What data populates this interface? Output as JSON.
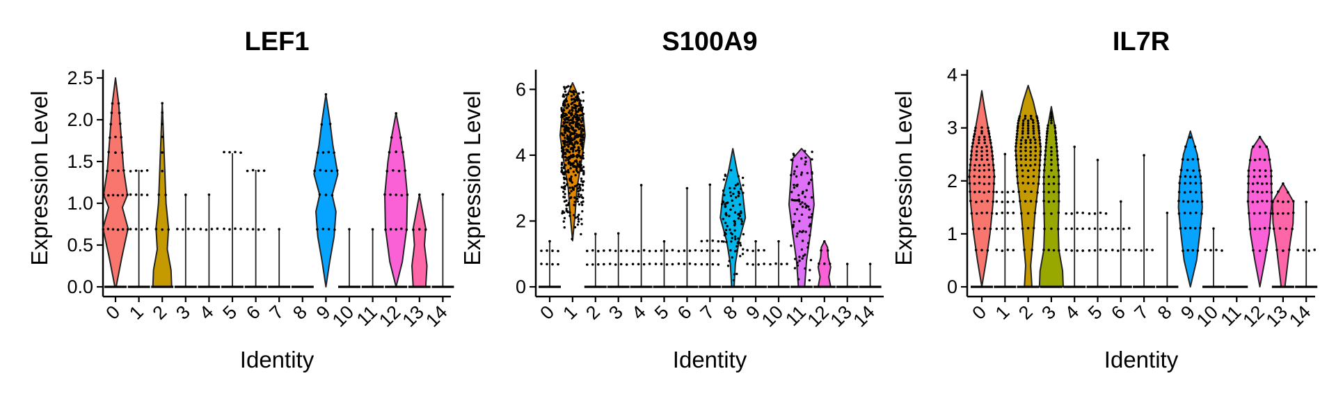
{
  "chart_data": [
    {
      "type": "violin",
      "title": "LEF1",
      "xlabel": "Identity",
      "ylabel": "Expression Level",
      "categories": [
        "0",
        "1",
        "2",
        "3",
        "4",
        "5",
        "6",
        "7",
        "8",
        "9",
        "10",
        "11",
        "12",
        "13",
        "14"
      ],
      "category_colors": [
        "#F8766D",
        "#E38900",
        "#C49A00",
        "#99A800",
        "#53B400",
        "#00BC56",
        "#00C094",
        "#00BFC4",
        "#00B6EB",
        "#06A4FF",
        "#A58AFF",
        "#DF70F8",
        "#FB61D7",
        "#FF66A8",
        "#FF6C91"
      ],
      "ylim": [
        0,
        2.6
      ],
      "yticks": [
        0.0,
        0.5,
        1.0,
        1.5,
        2.0,
        2.5
      ],
      "ytick_labels": [
        "0.0",
        "0.5",
        "1.0",
        "1.5",
        "2.0",
        "2.5"
      ],
      "groups": [
        {
          "max": 2.5,
          "levels": [
            0,
            0.69,
            1.1,
            1.39,
            1.61,
            1.79,
            1.95,
            2.08,
            2.2
          ],
          "profile": [
            [
              0,
              0.05
            ],
            [
              0.35,
              0.5
            ],
            [
              0.7,
              1.0
            ],
            [
              0.95,
              0.55
            ],
            [
              1.1,
              0.95
            ],
            [
              1.4,
              0.65
            ],
            [
              1.8,
              0.45
            ],
            [
              2.2,
              0.25
            ],
            [
              2.5,
              0
            ]
          ]
        },
        {
          "max": 1.4,
          "levels": [
            0,
            0.69,
            1.1,
            1.39
          ],
          "profile": null
        },
        {
          "max": 2.2,
          "levels": [
            0,
            0.69,
            1.1,
            1.39,
            1.61,
            1.79,
            1.95,
            2.08,
            2.2
          ],
          "profile": [
            [
              0,
              0.75
            ],
            [
              0.2,
              0.7
            ],
            [
              0.45,
              0.4
            ],
            [
              0.7,
              0.5
            ],
            [
              1.0,
              0.3
            ],
            [
              1.4,
              0.2
            ],
            [
              1.8,
              0.1
            ],
            [
              2.2,
              0
            ]
          ]
        },
        {
          "max": 1.1,
          "levels": [
            0,
            0.69,
            1.1
          ],
          "profile": null
        },
        {
          "max": 1.1,
          "levels": [
            0,
            0.69,
            1.1
          ],
          "profile": null
        },
        {
          "max": 1.6,
          "levels": [
            0,
            0.69,
            1.61
          ],
          "profile": null
        },
        {
          "max": 1.4,
          "levels": [
            0,
            0.69,
            1.39
          ],
          "profile": null
        },
        {
          "max": 0.69,
          "levels": [
            0,
            0.69
          ],
          "profile": null
        },
        {
          "max": 0,
          "levels": [
            0
          ],
          "profile": null
        },
        {
          "max": 2.3,
          "levels": [
            0.69,
            1.1,
            1.39,
            1.61,
            1.95,
            2.3
          ],
          "profile": [
            [
              0,
              0
            ],
            [
              0.3,
              0.3
            ],
            [
              0.6,
              0.65
            ],
            [
              0.9,
              0.8
            ],
            [
              1.1,
              0.5
            ],
            [
              1.35,
              0.95
            ],
            [
              1.7,
              0.55
            ],
            [
              2.0,
              0.3
            ],
            [
              2.3,
              0
            ]
          ]
        },
        {
          "max": 0.69,
          "levels": [
            0,
            0.69
          ],
          "profile": null
        },
        {
          "max": 0.69,
          "levels": [
            0,
            0.69
          ],
          "profile": null
        },
        {
          "max": 2.08,
          "levels": [
            0,
            0.69,
            1.1,
            1.39,
            1.61,
            1.79,
            2.08
          ],
          "profile": [
            [
              0,
              0
            ],
            [
              0.3,
              0.5
            ],
            [
              0.7,
              0.85
            ],
            [
              1.1,
              0.9
            ],
            [
              1.5,
              0.65
            ],
            [
              1.8,
              0.35
            ],
            [
              2.08,
              0
            ]
          ]
        },
        {
          "max": 1.1,
          "levels": [
            0,
            0.69,
            1.1
          ],
          "profile": [
            [
              0,
              0.5
            ],
            [
              0.25,
              0.6
            ],
            [
              0.5,
              0.4
            ],
            [
              0.7,
              0.5
            ],
            [
              0.9,
              0.25
            ],
            [
              1.1,
              0
            ]
          ]
        },
        {
          "max": 1.1,
          "levels": [
            0,
            1.1
          ],
          "profile": null
        }
      ]
    },
    {
      "type": "violin",
      "title": "S100A9",
      "xlabel": "Identity",
      "ylabel": "Expression Level",
      "categories": [
        "0",
        "1",
        "2",
        "3",
        "4",
        "5",
        "6",
        "7",
        "8",
        "9",
        "10",
        "11",
        "12",
        "13",
        "14"
      ],
      "category_colors": [
        "#F8766D",
        "#E38900",
        "#C49A00",
        "#99A800",
        "#53B400",
        "#00BC56",
        "#00C094",
        "#00BFC4",
        "#00B6EB",
        "#06A4FF",
        "#A58AFF",
        "#DF70F8",
        "#FB61D7",
        "#FF66A8",
        "#FF6C91"
      ],
      "ylim": [
        0,
        6.6
      ],
      "yticks": [
        0,
        2,
        4,
        6
      ],
      "ytick_labels": [
        "0",
        "2",
        "4",
        "6"
      ],
      "groups": [
        {
          "max": 1.39,
          "levels": [
            0,
            0.69,
            1.1,
            1.39
          ],
          "profile": null
        },
        {
          "max": 6.2,
          "levels": [],
          "continuous": [
            1.4,
            6.2
          ],
          "profile": [
            [
              1.4,
              0
            ],
            [
              2.2,
              0.2
            ],
            [
              3.0,
              0.35
            ],
            [
              3.8,
              0.7
            ],
            [
              4.6,
              1.0
            ],
            [
              5.2,
              0.85
            ],
            [
              5.8,
              0.45
            ],
            [
              6.2,
              0
            ]
          ]
        },
        {
          "max": 1.61,
          "levels": [
            0,
            0.69,
            1.1,
            1.61
          ],
          "profile": null
        },
        {
          "max": 1.61,
          "levels": [
            0,
            0.69,
            1.1,
            1.61
          ],
          "profile": null
        },
        {
          "max": 3.1,
          "levels": [
            0,
            0.69,
            1.1,
            3.1
          ],
          "profile": null
        },
        {
          "max": 1.39,
          "levels": [
            0,
            0.69,
            1.1,
            1.39
          ],
          "profile": null
        },
        {
          "max": 3.0,
          "levels": [
            0,
            0.69,
            1.1,
            3.0
          ],
          "profile": null
        },
        {
          "max": 3.1,
          "levels": [
            0,
            0.69,
            1.1,
            1.39,
            3.1
          ],
          "profile": null
        },
        {
          "max": 4.2,
          "levels": [],
          "continuous": [
            0,
            4.2
          ],
          "profile": [
            [
              0,
              0.1
            ],
            [
              0.7,
              0.2
            ],
            [
              1.4,
              0.5
            ],
            [
              2.1,
              1.0
            ],
            [
              2.8,
              0.8
            ],
            [
              3.5,
              0.35
            ],
            [
              4.2,
              0
            ]
          ]
        },
        {
          "max": 1.39,
          "levels": [
            0,
            0.69,
            1.1,
            1.39
          ],
          "profile": null
        },
        {
          "max": 1.39,
          "levels": [
            0,
            0.69,
            1.39
          ],
          "profile": null
        },
        {
          "max": 4.2,
          "levels": [],
          "continuous": [
            0,
            4.2
          ],
          "profile": [
            [
              0,
              0.25
            ],
            [
              0.8,
              0.4
            ],
            [
              1.6,
              0.7
            ],
            [
              2.5,
              1.0
            ],
            [
              3.3,
              0.85
            ],
            [
              3.9,
              0.7
            ],
            [
              4.2,
              0
            ]
          ]
        },
        {
          "max": 1.39,
          "levels": [
            0,
            0.69,
            1.1,
            1.39
          ],
          "profile": [
            [
              0,
              0.5
            ],
            [
              0.3,
              0.35
            ],
            [
              0.6,
              0.5
            ],
            [
              0.9,
              0.3
            ],
            [
              1.2,
              0.25
            ],
            [
              1.39,
              0
            ]
          ]
        },
        {
          "max": 0.69,
          "levels": [
            0,
            0.69
          ],
          "profile": null
        },
        {
          "max": 0.69,
          "levels": [
            0,
            0.69
          ],
          "profile": null
        }
      ]
    },
    {
      "type": "violin",
      "title": "IL7R",
      "xlabel": "Identity",
      "ylabel": "Expression Level",
      "categories": [
        "0",
        "1",
        "2",
        "3",
        "4",
        "5",
        "6",
        "7",
        "8",
        "9",
        "10",
        "11",
        "12",
        "13",
        "14"
      ],
      "category_colors": [
        "#F8766D",
        "#E38900",
        "#C49A00",
        "#99A800",
        "#53B400",
        "#00BC56",
        "#00C094",
        "#00BFC4",
        "#00B6EB",
        "#06A4FF",
        "#A58AFF",
        "#DF70F8",
        "#FB61D7",
        "#FF66A8",
        "#FF6C91"
      ],
      "ylim": [
        0,
        4.1
      ],
      "yticks": [
        0,
        1,
        2,
        3,
        4
      ],
      "ytick_labels": [
        "0",
        "1",
        "2",
        "3",
        "4"
      ],
      "groups": [
        {
          "max": 3.7,
          "levels": [
            0,
            0.69,
            1.1,
            1.39,
            1.61,
            1.79,
            1.95,
            2.08,
            2.2,
            2.3,
            2.4,
            2.48,
            2.56,
            2.64,
            2.71,
            2.77,
            2.83,
            2.89,
            2.94,
            3.0
          ],
          "profile": [
            [
              0,
              0
            ],
            [
              0.5,
              0.35
            ],
            [
              1.0,
              0.65
            ],
            [
              1.6,
              0.9
            ],
            [
              2.1,
              1.0
            ],
            [
              2.6,
              0.8
            ],
            [
              3.0,
              0.5
            ],
            [
              3.4,
              0.2
            ],
            [
              3.7,
              0
            ]
          ]
        },
        {
          "max": 2.5,
          "levels": [
            0,
            0.69,
            1.1,
            1.39,
            1.61,
            1.79,
            2.5
          ],
          "profile": null
        },
        {
          "max": 3.8,
          "levels": [
            0,
            0.69,
            1.1,
            1.39,
            1.61,
            1.79,
            1.95,
            2.08,
            2.2,
            2.3,
            2.4,
            2.48,
            2.56,
            2.64,
            2.71,
            2.77,
            2.83,
            2.89,
            2.94,
            3.0,
            3.04,
            3.09,
            3.14,
            3.18,
            3.22
          ],
          "profile": [
            [
              0,
              0.3
            ],
            [
              0.4,
              0.2
            ],
            [
              0.8,
              0.35
            ],
            [
              1.4,
              0.55
            ],
            [
              2.0,
              0.85
            ],
            [
              2.6,
              1.0
            ],
            [
              3.1,
              0.8
            ],
            [
              3.5,
              0.4
            ],
            [
              3.8,
              0
            ]
          ]
        },
        {
          "max": 3.4,
          "levels": [
            0,
            0.69,
            1.1,
            1.39,
            1.61,
            1.79,
            1.95,
            2.08,
            2.2,
            2.3,
            2.4,
            2.48,
            2.56,
            2.64,
            2.71,
            2.77,
            2.83,
            2.89,
            2.94,
            3.0,
            3.04,
            3.09,
            3.14,
            3.18,
            3.22,
            3.26,
            3.3
          ],
          "profile": [
            [
              0,
              0.95
            ],
            [
              0.3,
              0.9
            ],
            [
              0.7,
              0.6
            ],
            [
              1.1,
              0.55
            ],
            [
              1.6,
              0.6
            ],
            [
              2.1,
              0.6
            ],
            [
              2.6,
              0.45
            ],
            [
              3.0,
              0.3
            ],
            [
              3.4,
              0
            ]
          ]
        },
        {
          "max": 2.64,
          "levels": [
            0,
            0.69,
            1.1,
            1.39,
            2.64
          ],
          "profile": null
        },
        {
          "max": 2.4,
          "levels": [
            0,
            0.69,
            1.1,
            1.39,
            2.4
          ],
          "profile": null
        },
        {
          "max": 1.61,
          "levels": [
            0,
            0.69,
            1.1,
            1.61
          ],
          "profile": null
        },
        {
          "max": 2.48,
          "levels": [
            0,
            0.69,
            2.48
          ],
          "profile": null
        },
        {
          "max": 1.39,
          "levels": [
            0,
            1.39
          ],
          "profile": null
        },
        {
          "max": 2.94,
          "levels": [
            0.69,
            1.1,
            1.39,
            1.61,
            1.79,
            1.95,
            2.08,
            2.2,
            2.4,
            2.64,
            2.83
          ],
          "profile": [
            [
              0,
              0
            ],
            [
              0.5,
              0.5
            ],
            [
              1.0,
              0.75
            ],
            [
              1.5,
              0.95
            ],
            [
              2.0,
              0.85
            ],
            [
              2.5,
              0.55
            ],
            [
              2.94,
              0
            ]
          ]
        },
        {
          "max": 1.1,
          "levels": [
            0,
            0.69,
            1.1
          ],
          "profile": null
        },
        {
          "max": 0,
          "levels": [
            0
          ],
          "profile": null
        },
        {
          "max": 2.83,
          "levels": [
            0.69,
            1.1,
            1.39,
            1.61,
            1.79,
            1.95,
            2.08,
            2.2,
            2.4,
            2.64,
            2.83
          ],
          "profile": [
            [
              0,
              0
            ],
            [
              0.5,
              0.4
            ],
            [
              1.0,
              0.75
            ],
            [
              1.6,
              0.95
            ],
            [
              2.2,
              0.9
            ],
            [
              2.6,
              0.65
            ],
            [
              2.83,
              0
            ]
          ]
        },
        {
          "max": 1.95,
          "levels": [
            0,
            0.69,
            1.1,
            1.39,
            1.61,
            1.79,
            1.95
          ],
          "profile": [
            [
              0,
              0.15
            ],
            [
              0.4,
              0.35
            ],
            [
              0.8,
              0.55
            ],
            [
              1.2,
              0.8
            ],
            [
              1.6,
              0.85
            ],
            [
              1.95,
              0
            ]
          ]
        },
        {
          "max": 1.61,
          "levels": [
            0,
            0.69,
            1.61
          ],
          "profile": null
        }
      ]
    }
  ]
}
